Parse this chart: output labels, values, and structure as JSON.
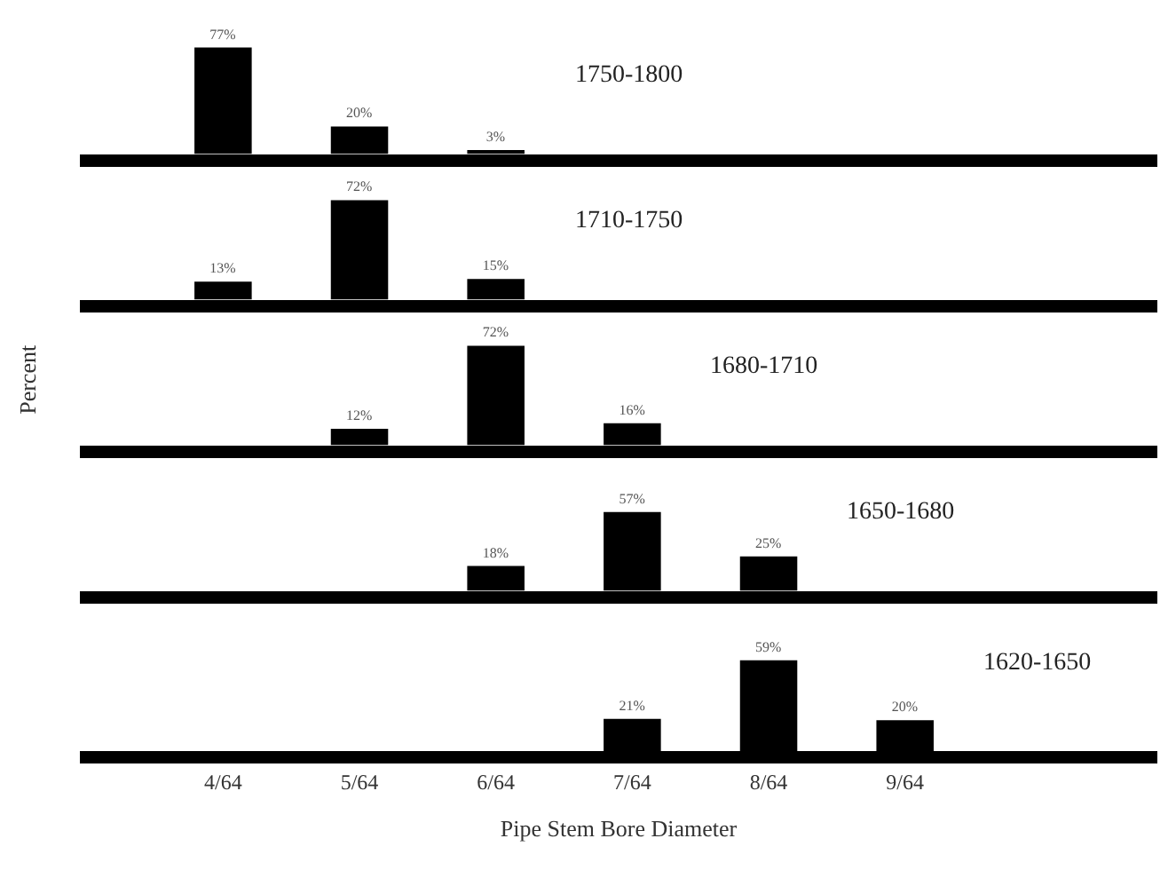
{
  "chart_data": [
    {
      "type": "bar",
      "title": "1750-1800",
      "categories": [
        "4/64",
        "5/64",
        "6/64",
        "7/64",
        "8/64",
        "9/64"
      ],
      "values": [
        77,
        20,
        3,
        null,
        null,
        null
      ],
      "value_labels": [
        "77%",
        "20%",
        "3%",
        null,
        null,
        null
      ],
      "color": "#000000",
      "tick_labels": false
    },
    {
      "type": "bar",
      "title": "1710-1750",
      "categories": [
        "4/64",
        "5/64",
        "6/64",
        "7/64",
        "8/64",
        "9/64"
      ],
      "values": [
        13,
        72,
        15,
        null,
        null,
        null
      ],
      "value_labels": [
        "13%",
        "72%",
        "15%",
        null,
        null,
        null
      ],
      "color": "#000000",
      "tick_labels": false
    },
    {
      "type": "bar",
      "title": "1680-1710",
      "ylabel": "Percent",
      "categories": [
        "4/64",
        "5/64",
        "6/64",
        "7/64",
        "8/64",
        "9/64"
      ],
      "values": [
        null,
        12,
        72,
        16,
        null,
        null
      ],
      "value_labels": [
        null,
        "12%",
        "72%",
        "16%",
        null,
        null
      ],
      "color": "#000000",
      "tick_labels": false
    },
    {
      "type": "bar",
      "title": "1650-1680",
      "categories": [
        "4/64",
        "5/64",
        "6/64",
        "7/64",
        "8/64",
        "9/64"
      ],
      "values": [
        null,
        null,
        18,
        57,
        25,
        null
      ],
      "value_labels": [
        null,
        null,
        "18%",
        "57%",
        "25%",
        null
      ],
      "color": "#000000",
      "tick_labels": false
    },
    {
      "type": "bar",
      "title": "1620-1650",
      "xlabel": "Pipe Stem Bore Diameter",
      "categories": [
        "4/64",
        "5/64",
        "6/64",
        "7/64",
        "8/64",
        "9/64"
      ],
      "values": [
        null,
        null,
        null,
        21,
        59,
        20
      ],
      "value_labels": [
        null,
        null,
        null,
        "21%",
        "59%",
        "20%"
      ],
      "color": "#000000",
      "tick_labels": "x"
    }
  ]
}
